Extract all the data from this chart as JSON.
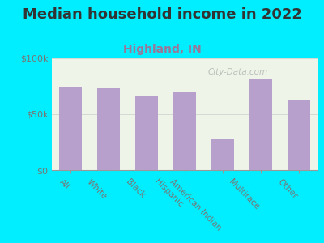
{
  "title": "Median household income in 2022",
  "subtitle": "Highland, IN",
  "categories": [
    "All",
    "White",
    "Black",
    "Hispanic",
    "American Indian",
    "Multirace",
    "Other"
  ],
  "values": [
    74000,
    73000,
    67000,
    70000,
    28000,
    82000,
    63000
  ],
  "bar_color": "#b8a0cc",
  "background_outer": "#00eeff",
  "background_inner": "#eef5e8",
  "ylim": [
    0,
    100000
  ],
  "yticks": [
    0,
    50000,
    100000
  ],
  "ytick_labels": [
    "$0",
    "$50k",
    "$100k"
  ],
  "title_fontsize": 13,
  "title_color": "#333333",
  "subtitle_fontsize": 10,
  "subtitle_color": "#997799",
  "watermark": "City-Data.com",
  "tick_label_color": "#777777",
  "tick_label_fontsize": 7.5,
  "ytick_label_fontsize": 8
}
